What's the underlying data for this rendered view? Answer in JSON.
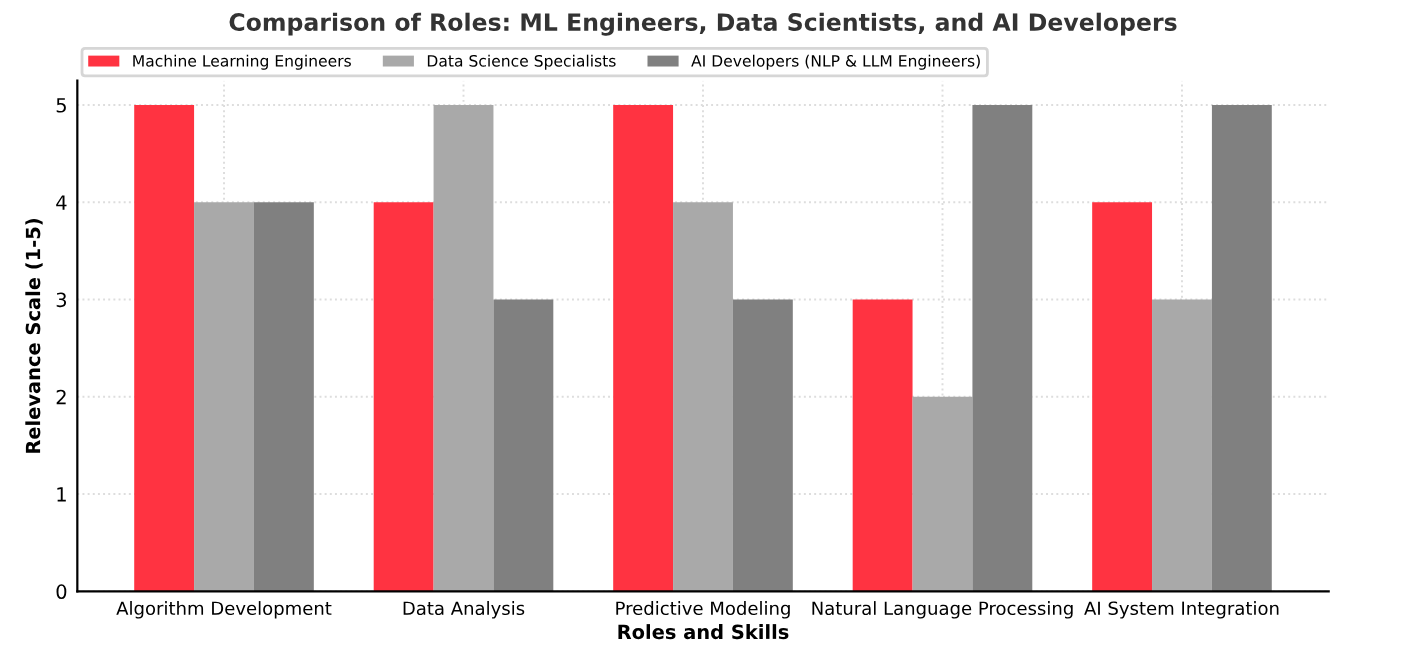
{
  "chart_data": {
    "type": "bar",
    "title": "Comparison of Roles: ML Engineers, Data Scientists, and AI Developers",
    "xlabel": "Roles and Skills",
    "ylabel": "Relevance Scale (1-5)",
    "categories": [
      "Algorithm Development",
      "Data Analysis",
      "Predictive Modeling",
      "Natural Language Processing",
      "AI System Integration"
    ],
    "series": [
      {
        "name": "Machine Learning Engineers",
        "color": "#ff3341",
        "values": [
          5,
          4,
          5,
          3,
          4
        ]
      },
      {
        "name": "Data Science Specialists",
        "color": "#a9a9a9",
        "values": [
          4,
          5,
          4,
          2,
          3
        ]
      },
      {
        "name": "AI Developers (NLP & LLM Engineers)",
        "color": "#808080",
        "values": [
          4,
          3,
          3,
          5,
          5
        ]
      }
    ],
    "ylim": [
      0,
      5.25
    ],
    "yticks": [
      0,
      1,
      2,
      3,
      4,
      5
    ],
    "grid": true,
    "legend": "top left"
  }
}
